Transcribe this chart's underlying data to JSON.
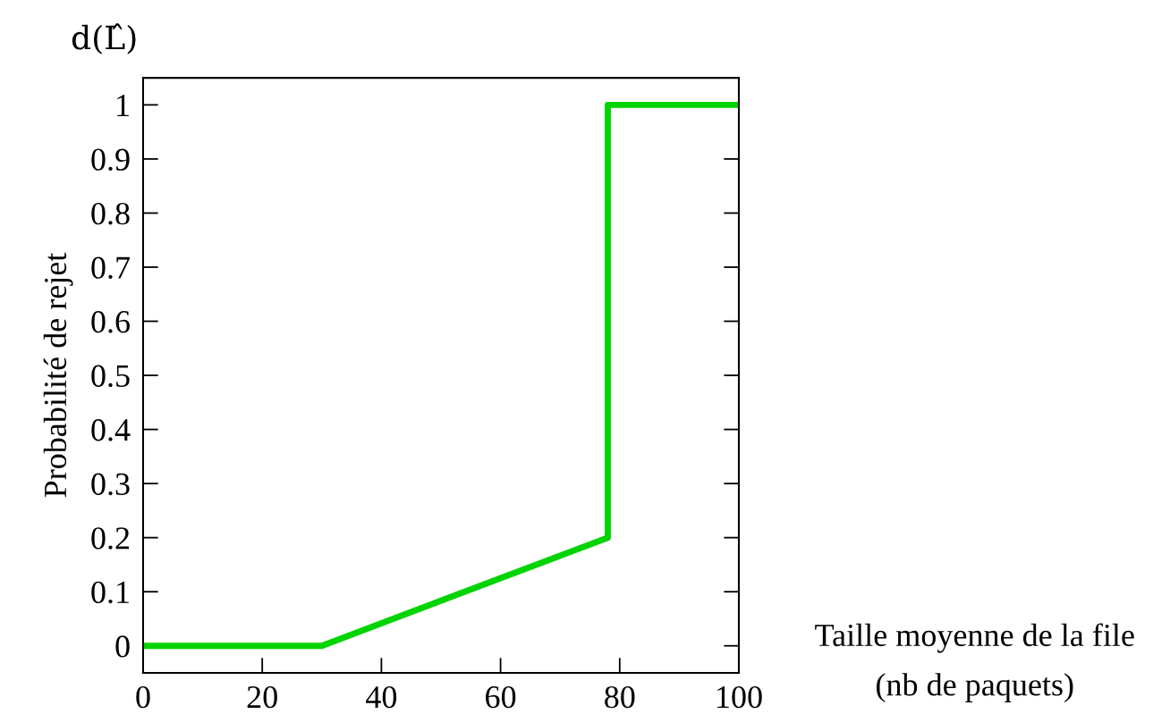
{
  "chart_data": {
    "type": "line",
    "ylabel": "Probabilité de rejet",
    "xlabel": "Taille moyenne de la file\n(nb de paquets)",
    "annotations": [
      "d(L̂)"
    ],
    "x": [
      0,
      30,
      78,
      78,
      100
    ],
    "series": [
      {
        "color": "#00d400",
        "values": [
          0,
          0,
          0.2,
          1,
          1
        ]
      }
    ],
    "xlim": [
      0,
      100
    ],
    "xticks": [
      0,
      20,
      40,
      60,
      80,
      100
    ],
    "ylim": [
      -0.05,
      1.05
    ],
    "yticks": [
      0,
      0.1,
      0.2,
      0.3,
      0.4,
      0.5,
      0.6,
      0.7,
      0.8,
      0.9,
      1
    ],
    "grid": false,
    "legend": false,
    "marker": "none",
    "line_style": "solid"
  }
}
